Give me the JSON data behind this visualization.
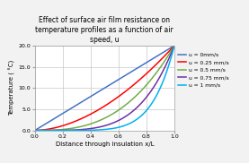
{
  "title": "Effect of surface air film resistance on\ntemperature profiles as a function of air\nspeed, u",
  "xlabel": "Distance through insulation x/L",
  "ylabel": "Temperature ( °C)",
  "xlim": [
    0,
    1
  ],
  "ylim": [
    0,
    20
  ],
  "yticks": [
    0.0,
    5.0,
    10.0,
    15.0,
    20.0
  ],
  "xticks": [
    0,
    0.2,
    0.4,
    0.6,
    0.8,
    1
  ],
  "T_max": 20.0,
  "series": [
    {
      "label": "u = 0mm/s",
      "exponent": 1.0,
      "color": "#4472C4"
    },
    {
      "label": "u = 0.25 mm/s",
      "exponent": 1.8,
      "color": "#FF0000"
    },
    {
      "label": "u = 0.5 mm/s",
      "exponent": 2.8,
      "color": "#70AD47"
    },
    {
      "label": "u = 0.75 mm/s",
      "exponent": 4.2,
      "color": "#7030A0"
    },
    {
      "label": "u = 1 mm/s",
      "exponent": 6.5,
      "color": "#00B0F0"
    }
  ],
  "background_color": "#F2F2F2",
  "plot_bg_color": "#FFFFFF",
  "grid_color": "#C8C8C8",
  "spine_color": "#A0A0A0",
  "title_fontsize": 5.5,
  "label_fontsize": 5.0,
  "tick_fontsize": 4.5,
  "legend_fontsize": 4.3,
  "linewidth": 1.1
}
